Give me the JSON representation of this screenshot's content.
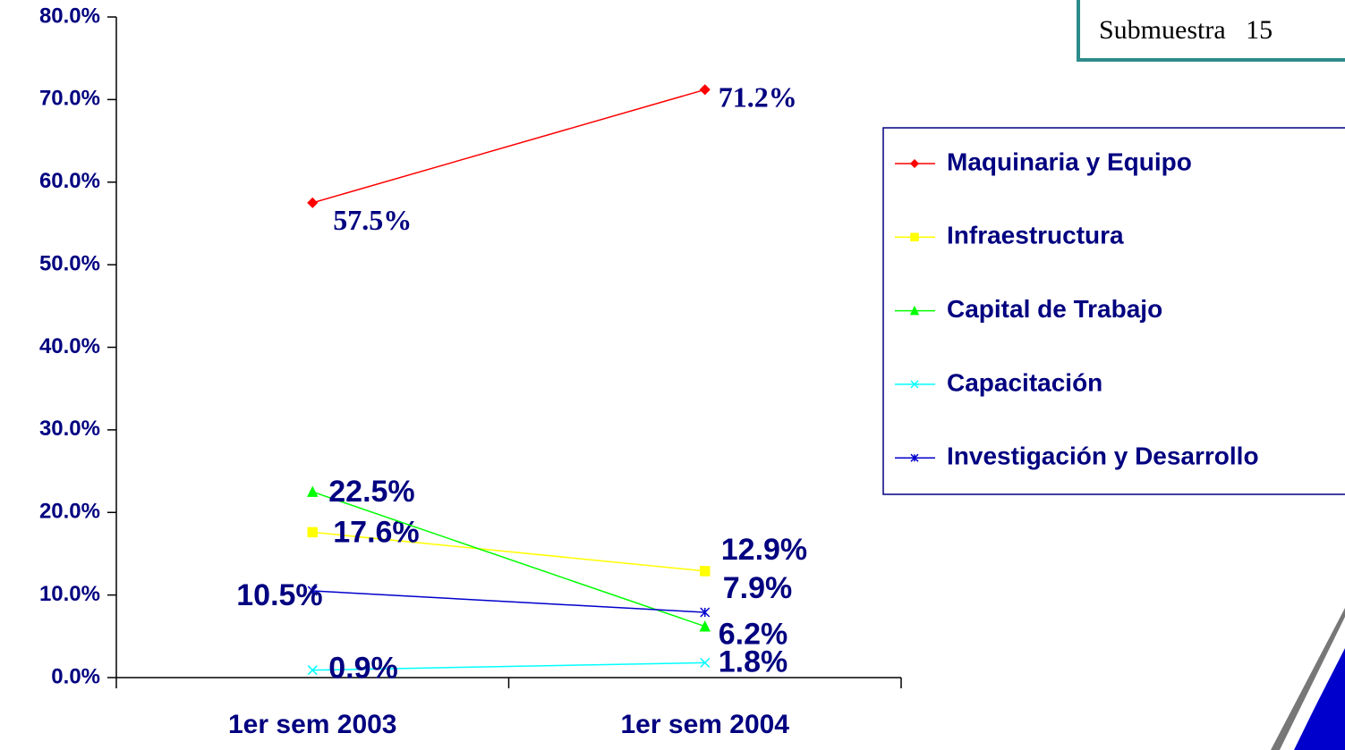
{
  "chart_data": {
    "type": "line",
    "categories": [
      "1er sem 2003",
      "1er sem 2004"
    ],
    "series": [
      {
        "name": "Maquinaria y Equipo",
        "color": "#ff0000",
        "marker": "diamond",
        "values": [
          57.5,
          71.2
        ],
        "value_labels": [
          "57.5%",
          "71.2%"
        ]
      },
      {
        "name": "Infraestructura",
        "color": "#ffff00",
        "marker": "square",
        "values": [
          17.6,
          12.9
        ],
        "value_labels": [
          "17.6%",
          "12.9%"
        ]
      },
      {
        "name": "Capital de Trabajo",
        "color": "#00ff00",
        "marker": "triangle",
        "values": [
          22.5,
          6.2
        ],
        "value_labels": [
          "22.5%",
          "6.2%"
        ]
      },
      {
        "name": "Capacitación",
        "color": "#00ffff",
        "marker": "x",
        "values": [
          0.9,
          1.8
        ],
        "value_labels": [
          "0.9%",
          "1.8%"
        ]
      },
      {
        "name": "Investigación y Desarrollo",
        "color": "#0000cc",
        "marker": "star",
        "values": [
          10.5,
          7.9
        ],
        "value_labels": [
          "10.5%",
          "7.9%"
        ]
      }
    ],
    "ylim": [
      0,
      80
    ],
    "yticks": [
      {
        "value": 0,
        "label": "0.0%"
      },
      {
        "value": 10,
        "label": "10.0%"
      },
      {
        "value": 20,
        "label": "20.0%"
      },
      {
        "value": 30,
        "label": "30.0%"
      },
      {
        "value": 40,
        "label": "40.0%"
      },
      {
        "value": 50,
        "label": "50.0%"
      },
      {
        "value": 60,
        "label": "60.0%"
      },
      {
        "value": 70,
        "label": "70.0%"
      },
      {
        "value": 80,
        "label": "80.0%"
      }
    ],
    "legend": "right",
    "annotation": "Submuestra   15"
  }
}
